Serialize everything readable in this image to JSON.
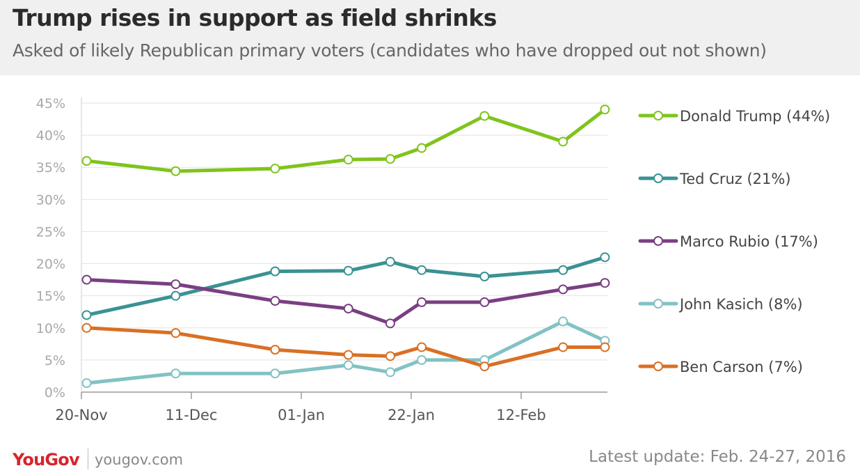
{
  "title": "Trump rises in support as field shrinks",
  "subtitle": "Asked of likely Republican primary voters (candidates who have dropped out not shown)",
  "footer": {
    "logo": "YouGov",
    "url": "yougov.com",
    "update": "Latest update: Feb. 24-27, 2016"
  },
  "chart_data": {
    "type": "line",
    "title": "Trump rises in support as field shrinks",
    "subtitle": "Asked of likely Republican primary voters (candidates who have dropped out not shown)",
    "x_ticks": [
      "20-Nov",
      "11-Dec",
      "01-Jan",
      "22-Jan",
      "12-Feb"
    ],
    "x_tick_dates": [
      "2015-11-20",
      "2015-12-11",
      "2016-01-01",
      "2016-01-22",
      "2016-02-12"
    ],
    "x": [
      "2015-11-21",
      "2015-12-08",
      "2015-12-27",
      "2016-01-10",
      "2016-01-18",
      "2016-01-24",
      "2016-02-05",
      "2016-02-20",
      "2016-02-28"
    ],
    "ylim": [
      0,
      45
    ],
    "y_ticks": [
      "0%",
      "5%",
      "10%",
      "15%",
      "20%",
      "25%",
      "30%",
      "35%",
      "40%",
      "45%"
    ],
    "grid": true,
    "legend_position": "right",
    "series": [
      {
        "name": "Donald Trump (44%)",
        "color": "#7fc41c",
        "values": [
          36,
          34.4,
          34.8,
          36.2,
          36.3,
          38,
          43,
          39,
          44
        ]
      },
      {
        "name": "Ted Cruz (21%)",
        "color": "#3a9293",
        "values": [
          12,
          15,
          18.8,
          18.9,
          20.3,
          19,
          18,
          19,
          21
        ]
      },
      {
        "name": "Marco Rubio (17%)",
        "color": "#7a3f82",
        "values": [
          17.5,
          16.8,
          14.2,
          13,
          10.7,
          14,
          14,
          16,
          17
        ]
      },
      {
        "name": "John Kasich (8%)",
        "color": "#82c2c4",
        "values": [
          1.4,
          2.9,
          2.9,
          4.2,
          3.1,
          5,
          5,
          11,
          8
        ]
      },
      {
        "name": "Ben Carson (7%)",
        "color": "#d97024",
        "values": [
          10,
          9.2,
          6.6,
          5.8,
          5.6,
          7,
          4,
          7,
          7
        ]
      }
    ]
  }
}
